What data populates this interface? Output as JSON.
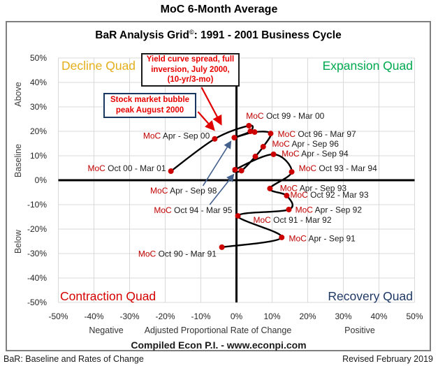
{
  "page": {
    "main_title": "MoC 6-Month Average",
    "subtitle_prefix": "BaR Analysis Grid",
    "subtitle_sup": "©",
    "subtitle_suffix": ": 1991 - 2001 Business Cycle",
    "compiled_line": "Compiled Econ P.I. - www.econpi.com",
    "footer_left": "BaR: Baseline and Rates of Change",
    "footer_right": "Revised February 2019"
  },
  "quadrants": [
    {
      "id": "decline",
      "label": "Decline Quad",
      "color": "#E4AF1C",
      "corner": "top-left"
    },
    {
      "id": "expansion",
      "label": "Expansion Quad",
      "color": "#00A94F",
      "corner": "top-right"
    },
    {
      "id": "contraction",
      "label": "Contraction Quad",
      "color": "#D50000",
      "corner": "bottom-left"
    },
    {
      "id": "recovery",
      "label": "Recovery Quad",
      "color": "#1F3864",
      "corner": "bottom-right"
    }
  ],
  "axes": {
    "x_ticks": [
      "-50%",
      "-40%",
      "-30%",
      "-20%",
      "-10%",
      "0%",
      "10%",
      "20%",
      "30%",
      "40%",
      "50%"
    ],
    "y_ticks": [
      "50%",
      "40%",
      "30%",
      "20%",
      "10%",
      "0%",
      "-10%",
      "-20%",
      "-30%",
      "-40%",
      "-50%"
    ],
    "x_axis_label": "Adjusted Proportional Rate of Change",
    "x_negative_label": "Negative",
    "x_positive_label": "Positive",
    "y_zone_labels": [
      "Above",
      "Baseline",
      "Below"
    ],
    "x_range": [
      -50,
      50
    ],
    "y_range": [
      -50,
      50
    ],
    "grid_color": "#D9D9D9",
    "axis_color": "#000000",
    "tick_color": "#262626"
  },
  "annotation_boxes": [
    {
      "id": "yield-curve",
      "text": "Yield curve spread, full inversion, July 2000, (10-yr/3-mo)",
      "text_color": "#E80000",
      "border_color": "#1a1a1a"
    },
    {
      "id": "bubble-peak",
      "text": "Stock market bubble peak  August 2000",
      "text_color": "#E80000",
      "border_color": "#17375E"
    }
  ],
  "chart_data": {
    "type": "scatter",
    "connected": true,
    "title": "MoC 6-Month Average",
    "xlabel": "Adjusted Proportional Rate of Change",
    "ylabel": "Above / Baseline / Below",
    "xlim": [
      -50,
      50
    ],
    "ylim": [
      -50,
      50
    ],
    "units": "percent",
    "moc_prefix": "MoC",
    "marker_color": "#CC0000",
    "line_color": "#000000",
    "label_text_color": "#1a1a1a",
    "label_prefix_color": "#C00000",
    "red_arrow_color": "#E00000",
    "blue_arrow_color": "#44618E",
    "points": [
      {
        "period": "Oct 90 - Mar 91",
        "x": -4.1,
        "y": -27.4,
        "lx": -5.6,
        "ly": -30.2,
        "anchor": "end"
      },
      {
        "period": "Apr - Sep 91",
        "x": 12.7,
        "y": -23.4,
        "lx": 14.7,
        "ly": -23.9,
        "anchor": "start"
      },
      {
        "period": "Oct 91 - Mar 92",
        "x": 0.4,
        "y": -14.6,
        "lx": 4.7,
        "ly": -16.3,
        "anchor": "start"
      },
      {
        "period": "Apr - Sep 92",
        "x": 14.7,
        "y": -12.0,
        "lx": 16.5,
        "ly": -12.2,
        "anchor": "start"
      },
      {
        "period": "Oct 92 - Mar 93",
        "x": 14.1,
        "y": -6.3,
        "lx": 15.1,
        "ly": -6.0,
        "anchor": "start"
      },
      {
        "period": "Apr - Sep 93",
        "x": 9.4,
        "y": -3.4,
        "lx": 12.2,
        "ly": -3.3,
        "anchor": "start"
      },
      {
        "period": "Oct 93 - Mar 94",
        "x": 15.5,
        "y": 3.4,
        "lx": 17.5,
        "ly": 4.9,
        "anchor": "start"
      },
      {
        "period": "Apr - Sep 94",
        "x": 10.4,
        "y": 10.6,
        "lx": 12.7,
        "ly": 10.9,
        "anchor": "start"
      },
      {
        "period": "Oct 94 - Mar 95",
        "x": -0.4,
        "y": 4.3,
        "lx": -1.2,
        "ly": -12.3,
        "anchor": "end"
      },
      {
        "period": null,
        "x": 1.4,
        "y": 3.9
      },
      {
        "period": null,
        "x": 5.3,
        "y": 9.7
      },
      {
        "period": "Apr - Sep 96",
        "x": 7.5,
        "y": 13.7,
        "lx": 10.0,
        "ly": 14.9,
        "anchor": "start"
      },
      {
        "period": "Oct 96 - Mar 97",
        "x": 9.6,
        "y": 19.1,
        "lx": 11.6,
        "ly": 18.9,
        "anchor": "start"
      },
      {
        "period": null,
        "x": 5.1,
        "y": 19.7
      },
      {
        "period": "Apr - Sep 98",
        "x": -0.6,
        "y": 17.4,
        "lx": -5.5,
        "ly": -4.3,
        "anchor": "end"
      },
      {
        "period": null,
        "x": 3.9,
        "y": 20.0
      },
      {
        "period": "Oct 99 - Mar 00",
        "x": 3.5,
        "y": 22.3,
        "lx": 2.7,
        "ly": 26.3,
        "anchor": "start"
      },
      {
        "period": "Apr - Sep 00",
        "x": -6.1,
        "y": 16.9,
        "lx": -7.5,
        "ly": 18.2,
        "anchor": "end"
      },
      {
        "period": "Oct 00 - Mar 01",
        "x": -18.4,
        "y": 3.7,
        "lx": -19.8,
        "ly": 4.9,
        "anchor": "end"
      }
    ],
    "red_arrows": [
      {
        "for": "yield-curve",
        "from": {
          "x": -9.8,
          "y": 38.0
        },
        "to": {
          "x": -4.3,
          "y": 22.9
        }
      },
      {
        "for": "bubble-peak",
        "from": {
          "x": -10.8,
          "y": 28.0
        },
        "to": {
          "x": -6.3,
          "y": 20.6
        }
      }
    ],
    "blue_arrows": [
      {
        "for": "Apr - Sep 98",
        "from": {
          "x": -9.4,
          "y": -2.3
        },
        "to": {
          "x": -1.6,
          "y": 15.8
        }
      },
      {
        "for": "Oct 94 - Mar 95",
        "from": {
          "x": -7.5,
          "y": -10.0
        },
        "to": {
          "x": -0.8,
          "y": 2.3
        }
      }
    ]
  }
}
